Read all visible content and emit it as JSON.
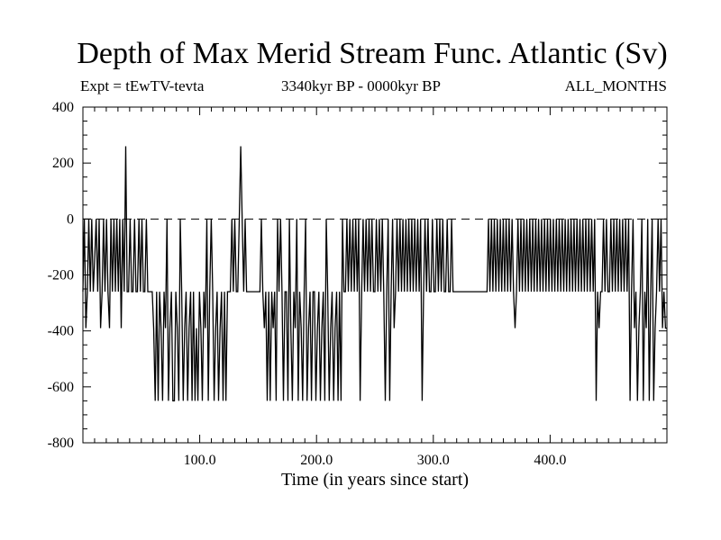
{
  "chart_data": {
    "type": "line",
    "title": "Depth of Max Merid Stream Func. Atlantic (Sv)",
    "subtitle_left": "Expt = tEwTV-tevta",
    "subtitle_center": "3340kyr BP - 0000kyr BP",
    "subtitle_right": "ALL_MONTHS",
    "xlabel": "Time (in years since start)",
    "ylabel": "",
    "xlim": [
      0,
      500
    ],
    "ylim": [
      -800,
      400
    ],
    "x_ticks": [
      100,
      200,
      300,
      400
    ],
    "x_tick_labels": [
      "100.0",
      "200.0",
      "300.0",
      "400.0"
    ],
    "y_ticks": [
      400,
      200,
      0,
      -200,
      -400,
      -600,
      -800
    ],
    "y_tick_labels": [
      "400",
      "200",
      "0",
      "-200",
      "-400",
      "-600",
      "-800"
    ],
    "zero_line": true,
    "grid": false,
    "series": [
      {
        "values": [
          -260,
          0,
          -390,
          -260,
          0,
          -260,
          0,
          -260,
          -140,
          0,
          -260,
          0,
          -390,
          -260,
          0,
          -260,
          0,
          -260,
          -390,
          0,
          -260,
          0,
          -260,
          0,
          -260,
          0,
          -390,
          0,
          -260,
          260,
          -260,
          -260,
          0,
          -260,
          -260,
          0,
          -260,
          -260,
          0,
          -260,
          0,
          -260,
          -260,
          0,
          -260,
          -260,
          -260,
          -260,
          -390,
          -650,
          -260,
          -650,
          -260,
          -390,
          -650,
          -260,
          -390,
          0,
          -650,
          -390,
          -260,
          -650,
          -650,
          -260,
          -390,
          -650,
          0,
          -260,
          -650,
          -390,
          -260,
          -650,
          -390,
          -260,
          -650,
          -260,
          -650,
          -390,
          -650,
          -260,
          -390,
          -650,
          -260,
          -390,
          0,
          -650,
          -260,
          0,
          -260,
          -650,
          -390,
          -260,
          -650,
          -390,
          -260,
          -650,
          -260,
          -650,
          -260,
          -260,
          -260,
          0,
          -260,
          0,
          -260,
          -260,
          0,
          260,
          0,
          -260,
          0,
          -260,
          -260,
          -260,
          -260,
          -260,
          -260,
          -260,
          -260,
          -260,
          -260,
          0,
          -260,
          -390,
          -260,
          -650,
          -260,
          -650,
          -260,
          -390,
          -260,
          -650,
          0,
          -260,
          0,
          -260,
          -650,
          -260,
          -260,
          -650,
          0,
          -390,
          -650,
          -260,
          -390,
          0,
          -650,
          -260,
          -390,
          -650,
          -260,
          0,
          -650,
          -390,
          -260,
          -650,
          -260,
          -260,
          -650,
          -390,
          -260,
          -650,
          -390,
          -260,
          -650,
          0,
          -260,
          -650,
          -390,
          -260,
          -650,
          -390,
          -260,
          -650,
          -260,
          -650,
          0,
          -260,
          -260,
          0,
          -260,
          0,
          -260,
          0,
          -260,
          0,
          -260,
          0,
          -650,
          -260,
          0,
          -260,
          0,
          -260,
          0,
          -260,
          0,
          -260,
          -260,
          0,
          -260,
          0,
          -260,
          0,
          -260,
          -650,
          -260,
          0,
          -650,
          -260,
          0,
          -390,
          -260,
          0,
          -260,
          0,
          -260,
          0,
          -260,
          0,
          -260,
          0,
          -260,
          0,
          -260,
          0,
          -260,
          0,
          -260,
          0,
          -650,
          -260,
          0,
          -260,
          0,
          -260,
          -260,
          0,
          -260,
          -260,
          0,
          -260,
          0,
          -260,
          0,
          -260,
          -260,
          0,
          -260,
          -260,
          0,
          -260,
          -260,
          -260,
          -260,
          -260,
          -260,
          -260,
          -260,
          -260,
          -260,
          -260,
          -260,
          -260,
          -260,
          -260,
          -260,
          -260,
          -260,
          -260,
          -260,
          -260,
          -260,
          -260,
          -260,
          0,
          -260,
          0,
          -260,
          0,
          -260,
          0,
          -260,
          0,
          -260,
          0,
          -260,
          0,
          -260,
          0,
          -260,
          0,
          -260,
          -390,
          -260,
          0,
          -260,
          0,
          -260,
          0,
          -260,
          0,
          -260,
          0,
          -260,
          0,
          -260,
          0,
          -260,
          0,
          -260,
          0,
          -260,
          0,
          -260,
          0,
          -260,
          0,
          -260,
          0,
          -260,
          0,
          -260,
          0,
          -260,
          0,
          -260,
          0,
          -260,
          0,
          -260,
          0,
          -260,
          0,
          -260,
          0,
          -260,
          0,
          -260,
          0,
          -260,
          0,
          -260,
          0,
          -260,
          0,
          -260,
          0,
          -650,
          -260,
          -390,
          -260,
          -260,
          0,
          -260,
          0,
          -260,
          -260,
          0,
          -260,
          0,
          -260,
          0,
          -260,
          0,
          -260,
          0,
          -260,
          0,
          -260,
          0,
          -650,
          -260,
          0,
          -390,
          -260,
          -650,
          -390,
          -260,
          0,
          -650,
          -260,
          -390,
          0,
          -650,
          -260,
          0,
          -650,
          -390,
          -260,
          0,
          -260,
          0,
          -390,
          -260,
          -390,
          -390
        ]
      }
    ]
  }
}
